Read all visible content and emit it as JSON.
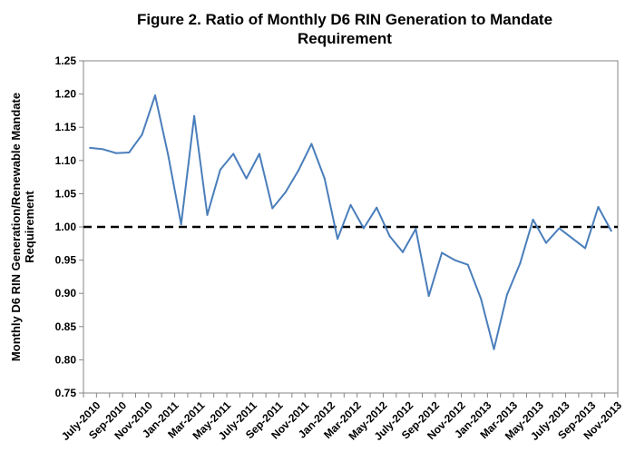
{
  "chart_data": {
    "type": "line",
    "title_lines": [
      "Figure 2. Ratio of Monthly D6 RIN Generation to Mandate",
      "Requirement"
    ],
    "ylabel_lines": [
      "Monthly D6 RIN Generation/Renewable Mandate",
      "Requirement"
    ],
    "xlabel": "",
    "ylim": [
      0.75,
      1.25
    ],
    "y_ticks": [
      "0.75",
      "0.80",
      "0.85",
      "0.90",
      "0.95",
      "1.00",
      "1.05",
      "1.10",
      "1.15",
      "1.20",
      "1.25"
    ],
    "x_tick_labels": [
      "July-2010",
      "Sep-2010",
      "Nov-2010",
      "Jan-2011",
      "Mar-2011",
      "May-2011",
      "July-2011",
      "Sep-2011",
      "Nov-2011",
      "Jan-2012",
      "Mar-2012",
      "May-2012",
      "July-2012",
      "Sep-2012",
      "Nov-2012",
      "Jan-2013",
      "Mar-2013",
      "May-2013",
      "July-2013",
      "Sep-2013",
      "Nov-2013"
    ],
    "grid": false,
    "legend": "none",
    "series": [
      {
        "color": "#4a7ebb",
        "values": [
          1.119,
          1.117,
          1.111,
          1.112,
          1.139,
          1.198,
          1.108,
          1.004,
          1.167,
          1.018,
          1.086,
          1.11,
          1.073,
          1.11,
          1.028,
          1.052,
          1.085,
          1.125,
          1.073,
          0.982,
          1.033,
          0.998,
          1.029,
          0.986,
          0.962,
          0.997,
          0.896,
          0.961,
          0.95,
          0.943,
          0.892,
          0.816,
          0.898,
          0.945,
          1.011,
          0.976,
          0.998,
          0.983,
          0.968,
          1.03,
          0.994
        ]
      }
    ],
    "reference_line": {
      "value": 1.0,
      "style": "dashed",
      "color": "#000000"
    }
  }
}
